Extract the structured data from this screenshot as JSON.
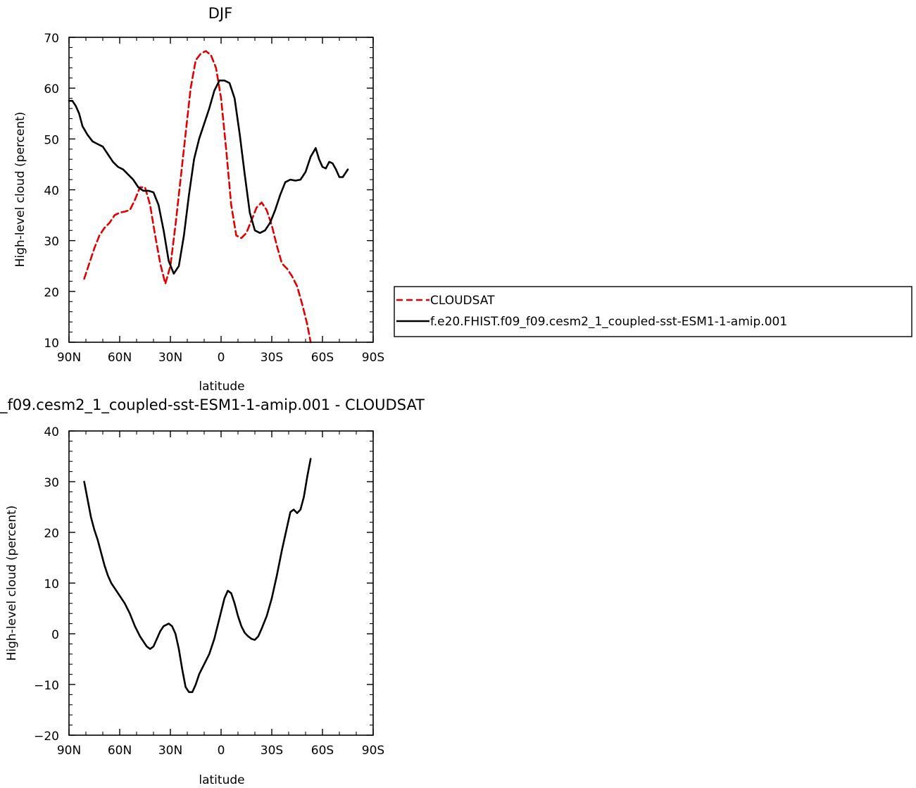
{
  "chart_data": [
    {
      "type": "line",
      "title": "DJF",
      "xlabel": "latitude",
      "ylabel": "High-level cloud (percent)",
      "xlim": [
        -90,
        90
      ],
      "ylim": [
        10,
        70
      ],
      "x_ticks": [
        -90,
        -60,
        -30,
        0,
        30,
        60,
        90
      ],
      "x_tick_labels": [
        "90N",
        "60N",
        "30N",
        "0",
        "30S",
        "60S",
        "90S"
      ],
      "y_ticks": [
        10,
        20,
        30,
        40,
        50,
        60,
        70
      ],
      "y_tick_labels": [
        "10",
        "20",
        "30",
        "40",
        "50",
        "60",
        "70"
      ],
      "legend_position": "right",
      "series": [
        {
          "name": "CLOUDSAT",
          "color": "#e00000",
          "dash": "dashed",
          "points": [
            [
              -81,
              22.5
            ],
            [
              -78,
              25.5
            ],
            [
              -75,
              28.5
            ],
            [
              -72,
              31
            ],
            [
              -69,
              32.5
            ],
            [
              -66,
              33.5
            ],
            [
              -63,
              35
            ],
            [
              -60,
              35.5
            ],
            [
              -57,
              35.7
            ],
            [
              -54,
              36
            ],
            [
              -51,
              38
            ],
            [
              -48,
              40.5
            ],
            [
              -45,
              40.5
            ],
            [
              -42,
              37
            ],
            [
              -39,
              31
            ],
            [
              -36,
              25.5
            ],
            [
              -33,
              21.5
            ],
            [
              -30,
              25
            ],
            [
              -27,
              33
            ],
            [
              -24,
              42
            ],
            [
              -21,
              51
            ],
            [
              -18,
              60
            ],
            [
              -15,
              65.5
            ],
            [
              -12,
              66.8
            ],
            [
              -9,
              67.3
            ],
            [
              -6,
              66.5
            ],
            [
              -3,
              64
            ],
            [
              0,
              58
            ],
            [
              3,
              48
            ],
            [
              6,
              37
            ],
            [
              9,
              31
            ],
            [
              12,
              30.5
            ],
            [
              15,
              31.5
            ],
            [
              18,
              34
            ],
            [
              21,
              36.5
            ],
            [
              24,
              37.5
            ],
            [
              27,
              36
            ],
            [
              30,
              33
            ],
            [
              33,
              29
            ],
            [
              36,
              25.5
            ],
            [
              39,
              24.5
            ],
            [
              42,
              23
            ],
            [
              45,
              21
            ],
            [
              48,
              17.5
            ],
            [
              51,
              13.5
            ],
            [
              53,
              10
            ]
          ]
        },
        {
          "name": "f.e20.FHIST.f09_f09.cesm2_1_coupled-sst-ESM1-1-amip.001",
          "color": "#000000",
          "dash": "solid",
          "points": [
            [
              -90,
              57.5
            ],
            [
              -88,
              57.5
            ],
            [
              -86,
              56.5
            ],
            [
              -84,
              55
            ],
            [
              -82,
              52.5
            ],
            [
              -79,
              50.8
            ],
            [
              -76,
              49.5
            ],
            [
              -73,
              49
            ],
            [
              -70,
              48.5
            ],
            [
              -67,
              47
            ],
            [
              -64,
              45.5
            ],
            [
              -61,
              44.5
            ],
            [
              -58,
              44
            ],
            [
              -55,
              43
            ],
            [
              -52,
              42
            ],
            [
              -49,
              40.5
            ],
            [
              -46,
              39.8
            ],
            [
              -43,
              39.8
            ],
            [
              -40,
              39.5
            ],
            [
              -37,
              37
            ],
            [
              -34,
              32
            ],
            [
              -31,
              26
            ],
            [
              -28,
              23.5
            ],
            [
              -25,
              25
            ],
            [
              -22,
              31
            ],
            [
              -19,
              39
            ],
            [
              -16,
              46
            ],
            [
              -13,
              50
            ],
            [
              -10,
              53
            ],
            [
              -7,
              56
            ],
            [
              -4,
              59.5
            ],
            [
              -1,
              61.5
            ],
            [
              2,
              61.5
            ],
            [
              5,
              61
            ],
            [
              8,
              58
            ],
            [
              11,
              51
            ],
            [
              14,
              43
            ],
            [
              17,
              35.5
            ],
            [
              20,
              32
            ],
            [
              23,
              31.5
            ],
            [
              26,
              32
            ],
            [
              29,
              33.5
            ],
            [
              32,
              36
            ],
            [
              35,
              39
            ],
            [
              38,
              41.5
            ],
            [
              41,
              42
            ],
            [
              44,
              41.8
            ],
            [
              47,
              42
            ],
            [
              50,
              43.5
            ],
            [
              53,
              46.5
            ],
            [
              56,
              48.2
            ],
            [
              58,
              46
            ],
            [
              60,
              44.5
            ],
            [
              62,
              44.2
            ],
            [
              64,
              45.5
            ],
            [
              66,
              45.2
            ],
            [
              68,
              44
            ],
            [
              70,
              42.5
            ],
            [
              72,
              42.5
            ],
            [
              75,
              44
            ]
          ]
        }
      ]
    },
    {
      "type": "line",
      "title": "_f09.cesm2_1_coupled-sst-ESM1-1-amip.001 - CLOUDSAT",
      "xlabel": "latitude",
      "ylabel": "High-level cloud (percent)",
      "xlim": [
        -90,
        90
      ],
      "ylim": [
        -20,
        40
      ],
      "x_ticks": [
        -90,
        -60,
        -30,
        0,
        30,
        60,
        90
      ],
      "x_tick_labels": [
        "90N",
        "60N",
        "30N",
        "0",
        "30S",
        "60S",
        "90S"
      ],
      "y_ticks": [
        -20,
        -10,
        0,
        10,
        20,
        30,
        40
      ],
      "y_tick_labels": [
        "−20",
        "−10",
        "0",
        "10",
        "20",
        "30",
        "40"
      ],
      "series": [
        {
          "color": "#000000",
          "dash": "solid",
          "points": [
            [
              -81,
              30
            ],
            [
              -79,
              26.5
            ],
            [
              -77,
              23
            ],
            [
              -75,
              20.5
            ],
            [
              -73,
              18.5
            ],
            [
              -71,
              16
            ],
            [
              -69,
              13.5
            ],
            [
              -67,
              11.5
            ],
            [
              -65,
              10
            ],
            [
              -63,
              9
            ],
            [
              -60,
              7.5
            ],
            [
              -57,
              6
            ],
            [
              -54,
              4
            ],
            [
              -51,
              1.5
            ],
            [
              -48,
              -0.5
            ],
            [
              -46,
              -1.5
            ],
            [
              -44,
              -2.5
            ],
            [
              -42,
              -3
            ],
            [
              -40,
              -2.5
            ],
            [
              -38,
              -1
            ],
            [
              -36,
              0.5
            ],
            [
              -34,
              1.5
            ],
            [
              -31,
              2
            ],
            [
              -29,
              1.5
            ],
            [
              -27,
              0
            ],
            [
              -25,
              -3
            ],
            [
              -23,
              -7
            ],
            [
              -21,
              -10.5
            ],
            [
              -19,
              -11.5
            ],
            [
              -17,
              -11.5
            ],
            [
              -15,
              -10
            ],
            [
              -13,
              -8
            ],
            [
              -10,
              -6
            ],
            [
              -7,
              -4
            ],
            [
              -4,
              -1
            ],
            [
              -1,
              3
            ],
            [
              2,
              7
            ],
            [
              4,
              8.5
            ],
            [
              6,
              8
            ],
            [
              8,
              6
            ],
            [
              10,
              3.5
            ],
            [
              12,
              1.5
            ],
            [
              14,
              0.2
            ],
            [
              16,
              -0.5
            ],
            [
              18,
              -1
            ],
            [
              20,
              -1.2
            ],
            [
              22,
              -0.5
            ],
            [
              24,
              1
            ],
            [
              27,
              3.5
            ],
            [
              30,
              7
            ],
            [
              33,
              11.5
            ],
            [
              36,
              16.5
            ],
            [
              39,
              21
            ],
            [
              41,
              24
            ],
            [
              43,
              24.5
            ],
            [
              45,
              23.8
            ],
            [
              47,
              24.5
            ],
            [
              49,
              27
            ],
            [
              51,
              31
            ],
            [
              53,
              34.5
            ]
          ]
        }
      ]
    }
  ]
}
